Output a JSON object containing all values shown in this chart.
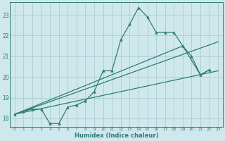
{
  "bg_color": "#cfe8ec",
  "grid_color": "#aacdd4",
  "line_color": "#2e7d6e",
  "xlabel": "Humidex (Indice chaleur)",
  "xlim": [
    -0.5,
    23.5
  ],
  "ylim": [
    17.6,
    23.6
  ],
  "yticks": [
    18,
    19,
    20,
    21,
    22,
    23
  ],
  "xticks": [
    0,
    1,
    2,
    3,
    4,
    5,
    6,
    7,
    8,
    9,
    10,
    11,
    12,
    13,
    14,
    15,
    16,
    17,
    18,
    19,
    20,
    21,
    22,
    23
  ],
  "main_x": [
    0,
    1,
    2,
    3,
    4,
    5,
    6,
    7,
    8,
    9,
    10,
    11,
    12,
    13,
    14,
    15,
    16,
    17,
    18,
    19,
    20,
    21,
    22
  ],
  "main_y": [
    18.2,
    18.35,
    18.45,
    18.45,
    17.75,
    17.75,
    18.55,
    18.65,
    18.85,
    19.3,
    20.3,
    20.3,
    21.8,
    22.55,
    23.35,
    22.9,
    22.15,
    22.15,
    22.15,
    21.5,
    21.0,
    20.1,
    20.35
  ],
  "line1_x": [
    0,
    23
  ],
  "line1_y": [
    18.2,
    20.3
  ],
  "line2_x": [
    0,
    23
  ],
  "line2_y": [
    18.2,
    21.7
  ],
  "line3_x": [
    0,
    19,
    21,
    22
  ],
  "line3_y": [
    18.2,
    21.5,
    20.1,
    20.35
  ]
}
